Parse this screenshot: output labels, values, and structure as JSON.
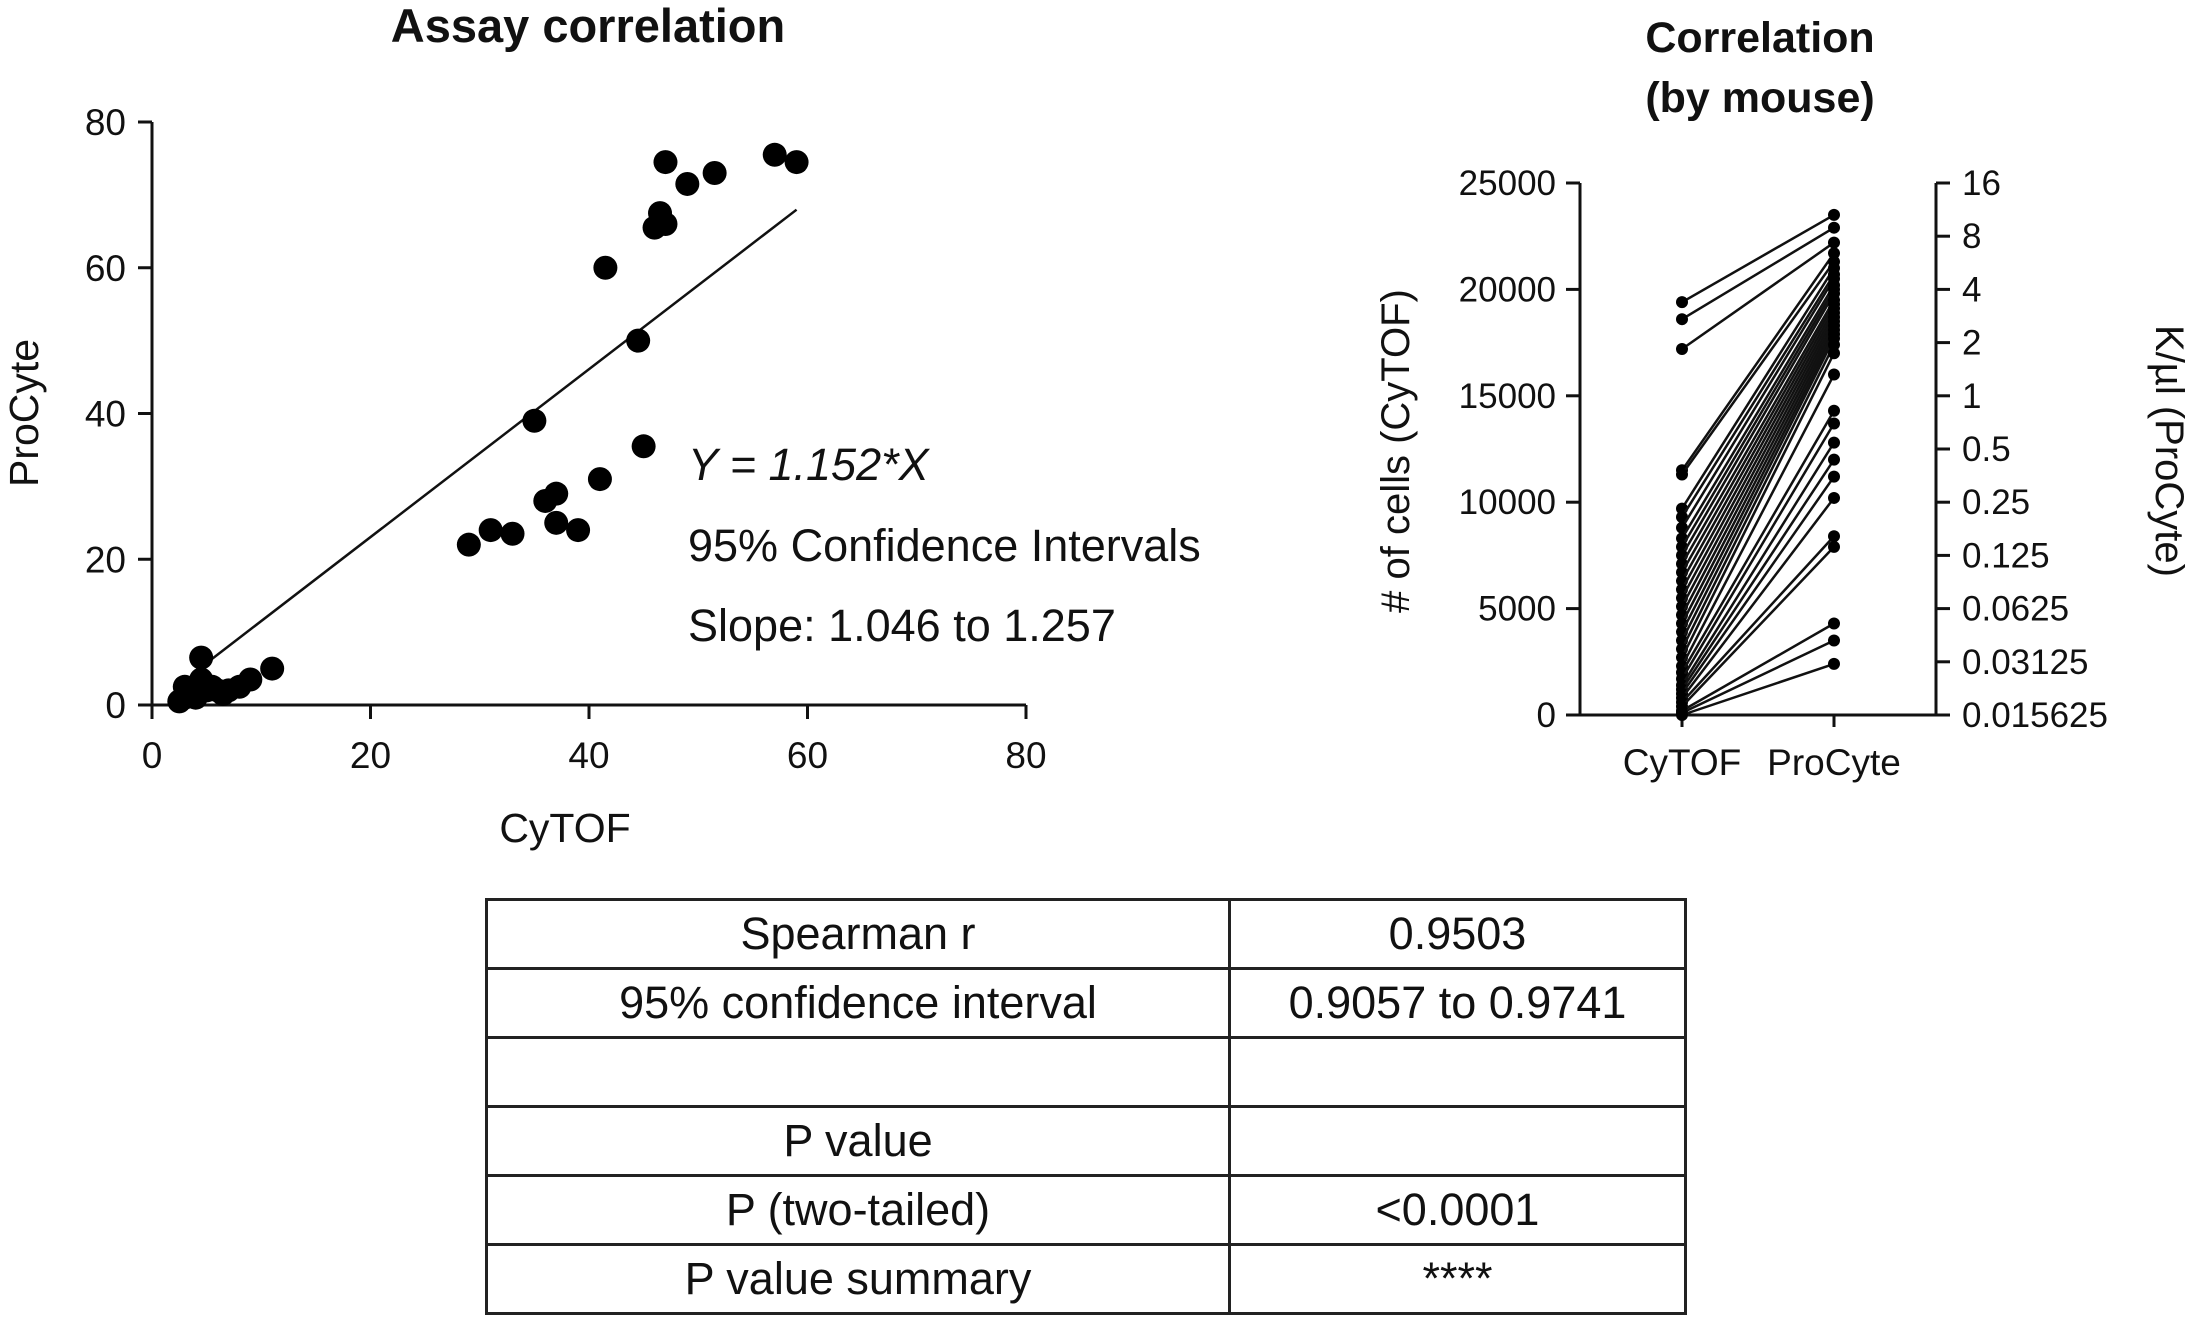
{
  "chart_data": [
    {
      "type": "scatter",
      "title": "Assay correlation",
      "xlabel": "CyTOF",
      "ylabel": "ProCyte",
      "xlim": [
        0,
        80
      ],
      "ylim": [
        0,
        80
      ],
      "xticks": [
        "0",
        "20",
        "40",
        "60",
        "80"
      ],
      "yticks": [
        "0",
        "20",
        "40",
        "60",
        "80"
      ],
      "points": [
        [
          2.5,
          0.5
        ],
        [
          3,
          1
        ],
        [
          3.5,
          1.5
        ],
        [
          3,
          2.5
        ],
        [
          4,
          1
        ],
        [
          4.5,
          3.5
        ],
        [
          4.5,
          6.5
        ],
        [
          5,
          2
        ],
        [
          5.5,
          2.5
        ],
        [
          6,
          2
        ],
        [
          6.5,
          1.5
        ],
        [
          7,
          2
        ],
        [
          8,
          2.5
        ],
        [
          9,
          3.5
        ],
        [
          11,
          5
        ],
        [
          29,
          22
        ],
        [
          31,
          24
        ],
        [
          33,
          23.5
        ],
        [
          35,
          39
        ],
        [
          36,
          28
        ],
        [
          37,
          29
        ],
        [
          37,
          25
        ],
        [
          39,
          24
        ],
        [
          41,
          31
        ],
        [
          41.5,
          60
        ],
        [
          44.5,
          50
        ],
        [
          45,
          35.5
        ],
        [
          46,
          65.5
        ],
        [
          46.5,
          67.5
        ],
        [
          47,
          66
        ],
        [
          47,
          74.5
        ],
        [
          49,
          71.5
        ],
        [
          51.5,
          73
        ],
        [
          57,
          75.5
        ],
        [
          59,
          74.5
        ]
      ],
      "fit": {
        "slope": 1.152,
        "x_range": [
          4.5,
          59
        ]
      },
      "annotations": {
        "equation": "Y = 1.152*X",
        "ci_label": "95% Confidence Intervals",
        "slope_ci": "Slope: 1.046 to 1.257"
      }
    },
    {
      "type": "line",
      "title": [
        "Correlation",
        "(by mouse)"
      ],
      "categories": [
        "CyTOF",
        "ProCyte"
      ],
      "ylabel_left": "# of cells (CyTOF)",
      "ylabel_right": "K/µl (ProCyte)",
      "ylim_left": [
        0,
        25000
      ],
      "yticks_left": [
        "0",
        "5000",
        "10000",
        "15000",
        "20000",
        "25000"
      ],
      "yticks_right": [
        "0.015625",
        "0.03125",
        "0.0625",
        "0.125",
        "0.25",
        "0.5",
        "1",
        "2",
        "4",
        "8",
        "16"
      ],
      "right_axis_scale": "log2",
      "pairs": [
        [
          19400,
          23500
        ],
        [
          18600,
          22900
        ],
        [
          17200,
          22200
        ],
        [
          11500,
          21700
        ],
        [
          11300,
          21300
        ],
        [
          9700,
          21000
        ],
        [
          9300,
          20700
        ],
        [
          8800,
          20500
        ],
        [
          8300,
          20200
        ],
        [
          7900,
          20000
        ],
        [
          7500,
          19800
        ],
        [
          7100,
          19500
        ],
        [
          6700,
          19300
        ],
        [
          6300,
          19100
        ],
        [
          5900,
          18900
        ],
        [
          5500,
          18700
        ],
        [
          5100,
          18500
        ],
        [
          4700,
          18300
        ],
        [
          4300,
          18100
        ],
        [
          3900,
          17900
        ],
        [
          3500,
          17700
        ],
        [
          3100,
          17400
        ],
        [
          2700,
          17000
        ],
        [
          2300,
          16000
        ],
        [
          2000,
          14300
        ],
        [
          1700,
          13700
        ],
        [
          1400,
          12800
        ],
        [
          1200,
          12000
        ],
        [
          1000,
          11200
        ],
        [
          800,
          10200
        ],
        [
          600,
          8400
        ],
        [
          400,
          7900
        ],
        [
          200,
          4300
        ],
        [
          100,
          3500
        ],
        [
          0,
          2400
        ]
      ]
    }
  ],
  "stats_table": {
    "rows": [
      {
        "label": "Spearman r",
        "value": "0.9503"
      },
      {
        "label": "95% confidence interval",
        "value": "0.9057 to 0.9741"
      },
      {
        "label": "",
        "value": ""
      },
      {
        "label": "P value",
        "value": ""
      },
      {
        "label": "P (two-tailed)",
        "value": "<0.0001"
      },
      {
        "label": "P value summary",
        "value": "****"
      }
    ]
  }
}
